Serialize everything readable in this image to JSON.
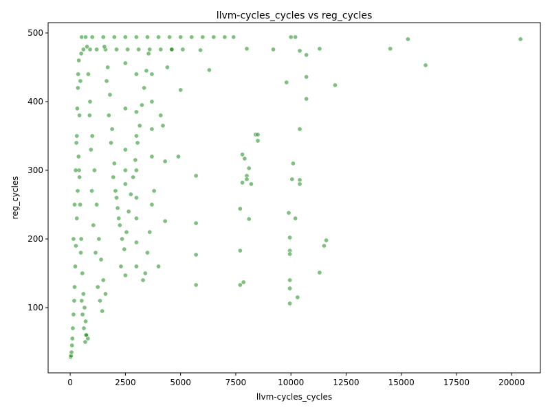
{
  "chart_data": {
    "type": "scatter",
    "title": "llvm-cycles_cycles vs reg_cycles",
    "xlabel": "llvm-cycles_cycles",
    "ylabel": "reg_cycles",
    "xlim": [
      -1000,
      21300
    ],
    "ylim": [
      5,
      515
    ],
    "x_ticks": [
      0,
      2500,
      5000,
      7500,
      10000,
      12500,
      15000,
      17500,
      20000
    ],
    "x_tick_labels": [
      "0",
      "2500",
      "5000",
      "7500",
      "10000",
      "12500",
      "15000",
      "17500",
      "20000"
    ],
    "y_ticks": [
      100,
      200,
      300,
      400,
      500
    ],
    "y_tick_labels": [
      "100",
      "200",
      "300",
      "400",
      "500"
    ],
    "grid": false,
    "marker_color": "#008000",
    "marker_edge_color": "#ffffff",
    "marker_alpha": 0.5,
    "series": [
      {
        "values": [
          [
            20,
            28
          ],
          [
            40,
            30
          ],
          [
            60,
            35
          ],
          [
            80,
            45
          ],
          [
            100,
            55
          ],
          [
            120,
            70
          ],
          [
            150,
            90
          ],
          [
            180,
            110
          ],
          [
            200,
            130
          ],
          [
            230,
            160
          ],
          [
            260,
            190
          ],
          [
            300,
            230
          ],
          [
            340,
            270
          ],
          [
            380,
            320
          ],
          [
            420,
            380
          ],
          [
            460,
            430
          ],
          [
            500,
            470
          ],
          [
            520,
            494
          ],
          [
            700,
            494
          ],
          [
            1000,
            494
          ],
          [
            1500,
            494
          ],
          [
            2000,
            494
          ],
          [
            2500,
            494
          ],
          [
            3000,
            494
          ],
          [
            3500,
            494
          ],
          [
            4000,
            494
          ],
          [
            4500,
            494
          ],
          [
            5000,
            494
          ],
          [
            5500,
            494
          ],
          [
            6000,
            494
          ],
          [
            6500,
            494
          ],
          [
            7000,
            494
          ],
          [
            7400,
            494
          ],
          [
            600,
            476
          ],
          [
            900,
            476
          ],
          [
            1200,
            476
          ],
          [
            1600,
            476
          ],
          [
            2100,
            476
          ],
          [
            2600,
            476
          ],
          [
            3100,
            476
          ],
          [
            3600,
            476
          ],
          [
            4100,
            476
          ],
          [
            4600,
            476
          ],
          [
            5100,
            476
          ],
          [
            300,
            350
          ],
          [
            350,
            420
          ],
          [
            400,
            300
          ],
          [
            450,
            250
          ],
          [
            500,
            200
          ],
          [
            550,
            150
          ],
          [
            600,
            120
          ],
          [
            650,
            100
          ],
          [
            700,
            80
          ],
          [
            750,
            60
          ],
          [
            800,
            55
          ],
          [
            900,
            400
          ],
          [
            1000,
            350
          ],
          [
            1100,
            300
          ],
          [
            1200,
            250
          ],
          [
            1300,
            200
          ],
          [
            1400,
            170
          ],
          [
            1500,
            140
          ],
          [
            1600,
            120
          ],
          [
            1700,
            450
          ],
          [
            1800,
            410
          ],
          [
            1900,
            360
          ],
          [
            2000,
            310
          ],
          [
            2100,
            260
          ],
          [
            2200,
            230
          ],
          [
            2300,
            160
          ],
          [
            2500,
            456
          ],
          [
            2500,
            390
          ],
          [
            2500,
            330
          ],
          [
            2500,
            300
          ],
          [
            2500,
            280
          ],
          [
            2500,
            147
          ],
          [
            3000,
            440
          ],
          [
            3000,
            385
          ],
          [
            3000,
            350
          ],
          [
            3000,
            300
          ],
          [
            3000,
            260
          ],
          [
            3000,
            230
          ],
          [
            3000,
            195
          ],
          [
            3000,
            160
          ],
          [
            3700,
            440
          ],
          [
            3700,
            400
          ],
          [
            3700,
            360
          ],
          [
            3700,
            320
          ],
          [
            3700,
            250
          ],
          [
            3800,
            270
          ],
          [
            3600,
            210
          ],
          [
            3500,
            180
          ],
          [
            3400,
            150
          ],
          [
            3300,
            140
          ],
          [
            4000,
            160
          ],
          [
            4100,
            380
          ],
          [
            4200,
            365
          ],
          [
            4300,
            313
          ],
          [
            4300,
            226
          ],
          [
            4400,
            450
          ],
          [
            4600,
            476
          ],
          [
            5000,
            417
          ],
          [
            4900,
            320
          ],
          [
            5700,
            292
          ],
          [
            5700,
            223
          ],
          [
            5700,
            177
          ],
          [
            5700,
            133
          ],
          [
            5900,
            475
          ],
          [
            6300,
            446
          ],
          [
            7700,
            244
          ],
          [
            7700,
            183
          ],
          [
            7700,
            133
          ],
          [
            7800,
            323
          ],
          [
            7800,
            282
          ],
          [
            7850,
            137
          ],
          [
            7900,
            317
          ],
          [
            8000,
            292
          ],
          [
            8000,
            287
          ],
          [
            8100,
            229
          ],
          [
            8100,
            303
          ],
          [
            8200,
            280
          ],
          [
            8000,
            477
          ],
          [
            8400,
            352
          ],
          [
            8500,
            352
          ],
          [
            8500,
            343
          ],
          [
            9200,
            476
          ],
          [
            9800,
            428
          ],
          [
            9900,
            238
          ],
          [
            9950,
            202
          ],
          [
            9950,
            183
          ],
          [
            9950,
            178
          ],
          [
            9950,
            140
          ],
          [
            9950,
            128
          ],
          [
            9950,
            106
          ],
          [
            10000,
            494
          ],
          [
            10050,
            287
          ],
          [
            10100,
            310
          ],
          [
            10200,
            230
          ],
          [
            10200,
            494
          ],
          [
            10300,
            115
          ],
          [
            10400,
            474
          ],
          [
            10400,
            360
          ],
          [
            10400,
            286
          ],
          [
            10400,
            280
          ],
          [
            10700,
            404
          ],
          [
            10700,
            436
          ],
          [
            10700,
            468
          ],
          [
            11300,
            477
          ],
          [
            11300,
            151
          ],
          [
            11500,
            190
          ],
          [
            11600,
            198
          ],
          [
            12000,
            424
          ],
          [
            14500,
            477
          ],
          [
            15300,
            491
          ],
          [
            16100,
            453
          ],
          [
            20400,
            491
          ],
          [
            150,
            200
          ],
          [
            200,
            250
          ],
          [
            250,
            300
          ],
          [
            280,
            340
          ],
          [
            320,
            390
          ],
          [
            360,
            440
          ],
          [
            390,
            460
          ],
          [
            420,
            290
          ],
          [
            480,
            180
          ],
          [
            520,
            110
          ],
          [
            560,
            90
          ],
          [
            620,
            70
          ],
          [
            680,
            50
          ],
          [
            720,
            60
          ],
          [
            760,
            480
          ],
          [
            820,
            440
          ],
          [
            880,
            380
          ],
          [
            940,
            330
          ],
          [
            980,
            270
          ],
          [
            1050,
            220
          ],
          [
            1150,
            180
          ],
          [
            1250,
            130
          ],
          [
            1350,
            110
          ],
          [
            1450,
            95
          ],
          [
            1550,
            480
          ],
          [
            1650,
            430
          ],
          [
            1750,
            380
          ],
          [
            1850,
            340
          ],
          [
            1950,
            290
          ],
          [
            2050,
            270
          ],
          [
            2150,
            245
          ],
          [
            2250,
            220
          ],
          [
            2350,
            200
          ],
          [
            2450,
            185
          ],
          [
            2550,
            210
          ],
          [
            2650,
            240
          ],
          [
            2750,
            265
          ],
          [
            2850,
            290
          ],
          [
            2950,
            315
          ],
          [
            3050,
            340
          ],
          [
            3150,
            365
          ],
          [
            3250,
            395
          ],
          [
            3350,
            420
          ],
          [
            3450,
            445
          ],
          [
            3550,
            470
          ]
        ]
      }
    ]
  }
}
